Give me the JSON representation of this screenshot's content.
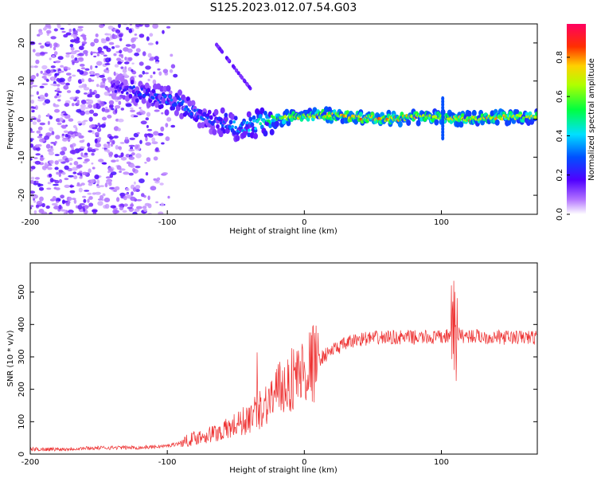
{
  "title": "S125.2023.012.07.54.G03",
  "chart_data": [
    {
      "type": "heatmap",
      "xlabel": "Height of straight line (km)",
      "ylabel": "Frequency (Hz)",
      "xlim": [
        -200,
        170
      ],
      "ylim": [
        -25,
        25
      ],
      "xticks": [
        -200,
        -100,
        0,
        100
      ],
      "yticks": [
        -20,
        -10,
        0,
        10,
        20
      ],
      "colorbar_label": "Normalized spectral amplitude",
      "colorbar_ticks": [
        "0.0",
        "0.2",
        "0.4",
        "0.6",
        "0.8"
      ],
      "colorbar_range": [
        0,
        0.97
      ],
      "ridge": [
        {
          "x": -140,
          "y": 8,
          "amp": 0.2
        },
        {
          "x": -130,
          "y": 8,
          "amp": 0.25
        },
        {
          "x": -120,
          "y": 7,
          "amp": 0.3
        },
        {
          "x": -110,
          "y": 6,
          "amp": 0.3
        },
        {
          "x": -100,
          "y": 5,
          "amp": 0.35
        },
        {
          "x": -90,
          "y": 4,
          "amp": 0.35
        },
        {
          "x": -80,
          "y": 2,
          "amp": 0.35
        },
        {
          "x": -70,
          "y": 0,
          "amp": 0.3
        },
        {
          "x": -60,
          "y": -1,
          "amp": 0.35
        },
        {
          "x": -50,
          "y": -2,
          "amp": 0.4
        },
        {
          "x": -40,
          "y": -2,
          "amp": 0.45
        },
        {
          "x": -30,
          "y": -0.5,
          "amp": 0.55
        },
        {
          "x": -20,
          "y": 0,
          "amp": 0.7
        },
        {
          "x": -10,
          "y": 0.5,
          "amp": 0.8
        },
        {
          "x": 0,
          "y": 1,
          "amp": 0.8
        },
        {
          "x": 20,
          "y": 1,
          "amp": 0.85
        },
        {
          "x": 40,
          "y": 0.5,
          "amp": 0.9
        },
        {
          "x": 60,
          "y": 0,
          "amp": 0.9
        },
        {
          "x": 80,
          "y": 0.5,
          "amp": 0.85
        },
        {
          "x": 100,
          "y": 0.5,
          "amp": 0.8
        },
        {
          "x": 120,
          "y": 0,
          "amp": 0.85
        },
        {
          "x": 140,
          "y": 0.5,
          "amp": 0.85
        },
        {
          "x": 160,
          "y": 0.5,
          "amp": 0.8
        },
        {
          "x": 170,
          "y": 0.5,
          "amp": 0.8
        }
      ],
      "colors": {
        "low": "#8000ff",
        "mid": "#00ffff",
        "high": "#ff0000"
      }
    },
    {
      "type": "line",
      "xlabel": "Height of straight line (km)",
      "ylabel": "SNR (10 * v/v)",
      "xlim": [
        -200,
        170
      ],
      "ylim": [
        0,
        590
      ],
      "xticks": [
        -200,
        -100,
        0,
        100
      ],
      "yticks": [
        0,
        100,
        200,
        300,
        400,
        500
      ],
      "series": [
        {
          "color": "#ee3333",
          "x": [
            -200,
            -180,
            -160,
            -140,
            -120,
            -100,
            -90,
            -80,
            -70,
            -60,
            -50,
            -40,
            -30,
            -20,
            -10,
            0,
            10,
            20,
            30,
            40,
            60,
            80,
            100,
            105,
            108,
            110,
            112,
            115,
            120,
            140,
            160,
            170
          ],
          "y": [
            15,
            15,
            18,
            20,
            20,
            25,
            35,
            50,
            60,
            70,
            90,
            110,
            150,
            190,
            230,
            260,
            290,
            320,
            340,
            355,
            360,
            360,
            360,
            365,
            380,
            360,
            370,
            365,
            365,
            360,
            360,
            360
          ]
        }
      ]
    }
  ]
}
